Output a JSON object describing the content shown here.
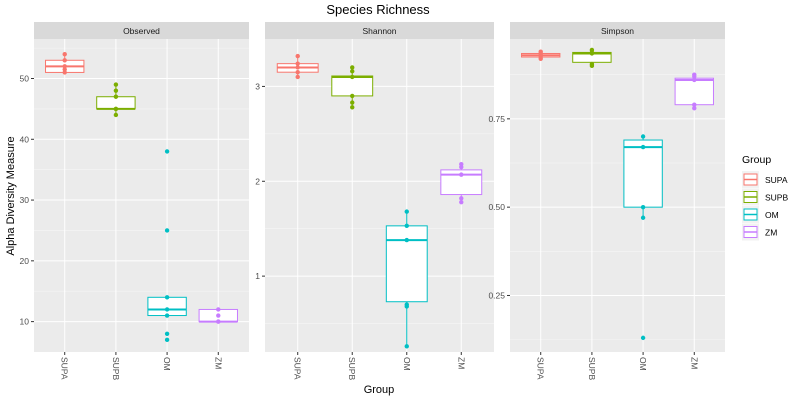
{
  "chart_data": {
    "type": "box",
    "title": "Species Richness",
    "xlabel": "Group",
    "ylabel": "Alpha Diversity Measure",
    "categories": [
      "SUPA",
      "SUPB",
      "OM",
      "ZM"
    ],
    "colors": {
      "SUPA": "#f8766d",
      "SUPB": "#7cae00",
      "OM": "#00bfc4",
      "ZM": "#c77cff"
    },
    "legend": {
      "title": "Group",
      "position": "right",
      "labels": [
        "SUPA",
        "SUPB",
        "OM",
        "ZM"
      ]
    },
    "grid": true,
    "facets": [
      {
        "name": "Observed",
        "ylim": [
          5,
          56.5
        ],
        "y_ticks": [
          10,
          20,
          30,
          40,
          50
        ],
        "boxes": [
          {
            "group": "SUPA",
            "q1": 51,
            "median": 52,
            "q3": 53,
            "whisker_low": 51,
            "whisker_high": 54,
            "points": [
              51,
              51.5,
              52,
              53,
              54
            ]
          },
          {
            "group": "SUPB",
            "q1": 45,
            "median": 45,
            "q3": 47,
            "whisker_low": 44,
            "whisker_high": 49,
            "points": [
              44,
              45,
              45,
              47,
              48,
              49
            ]
          },
          {
            "group": "OM",
            "q1": 11,
            "median": 12,
            "q3": 14,
            "whisker_low": 11,
            "whisker_high": 14,
            "outliers": [
              7,
              8,
              25,
              38
            ],
            "points": [
              7,
              8,
              11,
              12,
              14,
              25,
              38
            ]
          },
          {
            "group": "ZM",
            "q1": 10,
            "median": 10,
            "q3": 12,
            "whisker_low": 10,
            "whisker_high": 12,
            "points": [
              10,
              10,
              11,
              12
            ]
          }
        ]
      },
      {
        "name": "Shannon",
        "ylim": [
          0.2,
          3.5
        ],
        "y_ticks": [
          1,
          2,
          3
        ],
        "boxes": [
          {
            "group": "SUPA",
            "q1": 3.15,
            "median": 3.2,
            "q3": 3.24,
            "whisker_low": 3.1,
            "whisker_high": 3.32,
            "points": [
              3.1,
              3.15,
              3.2,
              3.24,
              3.32
            ]
          },
          {
            "group": "SUPB",
            "q1": 2.9,
            "median": 3.1,
            "q3": 3.11,
            "whisker_low": 2.78,
            "whisker_high": 3.2,
            "points": [
              2.78,
              2.83,
              2.9,
              3.1,
              3.16,
              3.2
            ]
          },
          {
            "group": "OM",
            "q1": 0.73,
            "median": 1.38,
            "q3": 1.53,
            "whisker_low": 0.26,
            "whisker_high": 1.68,
            "points": [
              0.26,
              0.68,
              0.7,
              1.38,
              1.53,
              1.68
            ]
          },
          {
            "group": "ZM",
            "q1": 1.86,
            "median": 2.07,
            "q3": 2.12,
            "whisker_low": 1.78,
            "whisker_high": 2.18,
            "points": [
              1.78,
              1.82,
              2.07,
              2.15,
              2.18
            ]
          }
        ]
      },
      {
        "name": "Simpson",
        "ylim": [
          0.09,
          0.976
        ],
        "y_ticks": [
          0.25,
          0.5,
          0.75
        ],
        "y_tick_labels": [
          "0.25",
          "0.50",
          "0.75"
        ],
        "boxes": [
          {
            "group": "SUPA",
            "q1": 0.925,
            "median": 0.93,
            "q3": 0.935,
            "whisker_low": 0.92,
            "whisker_high": 0.94,
            "points": [
              0.92,
              0.925,
              0.93,
              0.935,
              0.94
            ]
          },
          {
            "group": "SUPB",
            "q1": 0.91,
            "median": 0.935,
            "q3": 0.938,
            "whisker_low": 0.9,
            "whisker_high": 0.945,
            "points": [
              0.9,
              0.905,
              0.935,
              0.938,
              0.945
            ]
          },
          {
            "group": "OM",
            "q1": 0.5,
            "median": 0.67,
            "q3": 0.69,
            "whisker_low": 0.47,
            "whisker_high": 0.7,
            "outliers": [
              0.13
            ],
            "points": [
              0.13,
              0.47,
              0.5,
              0.67,
              0.7
            ]
          },
          {
            "group": "ZM",
            "q1": 0.79,
            "median": 0.86,
            "q3": 0.865,
            "whisker_low": 0.78,
            "whisker_high": 0.875,
            "points": [
              0.78,
              0.79,
              0.86,
              0.87,
              0.875
            ]
          }
        ]
      }
    ]
  }
}
